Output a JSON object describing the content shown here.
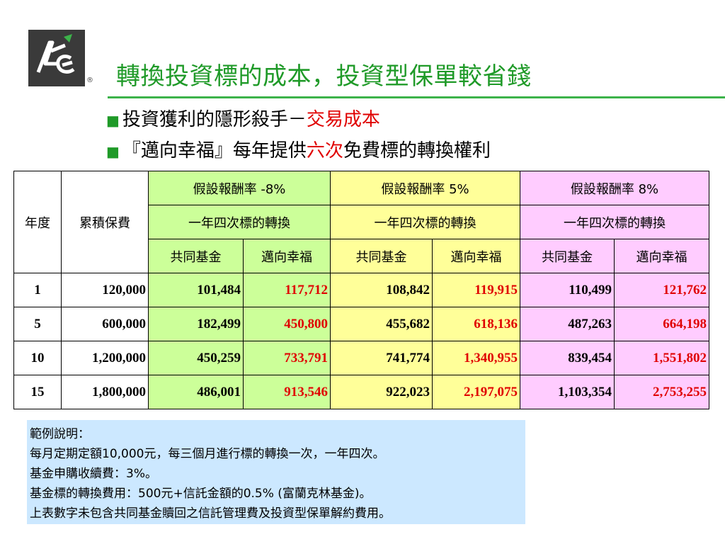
{
  "header": {
    "title": "轉換投資標的成本，投資型保單較省錢",
    "reg_mark": "®"
  },
  "bullets": [
    {
      "marker": "■",
      "prefix": "投資獲利的隱形殺手－",
      "highlight": "交易成本",
      "suffix": ""
    },
    {
      "marker": "■",
      "prefix": "『邁向幸福』每年提供",
      "highlight": "六次",
      "suffix": "免費標的轉換權利"
    }
  ],
  "table": {
    "col_year": "年度",
    "col_premium": "累積保費",
    "groups": [
      {
        "rate_label": "假設報酬率 -8%",
        "sub": "一年四次標的轉換",
        "fund": "共同基金",
        "product": "邁向幸福",
        "color": "#ccff99"
      },
      {
        "rate_label": "假設報酬率 5%",
        "sub": "一年四次標的轉換",
        "fund": "共同基金",
        "product": "邁向幸福",
        "color": "#ffff99"
      },
      {
        "rate_label": "假設報酬率 8%",
        "sub": "一年四次標的轉換",
        "fund": "共同基金",
        "product": "邁向幸福",
        "color": "#ffccff"
      }
    ],
    "rows": [
      {
        "year": "1",
        "premium": "120,000",
        "vals": [
          "101,484",
          "117,712",
          "108,842",
          "119,915",
          "110,499",
          "121,762"
        ]
      },
      {
        "year": "5",
        "premium": "600,000",
        "vals": [
          "182,499",
          "450,800",
          "455,682",
          "618,136",
          "487,263",
          "664,198"
        ]
      },
      {
        "year": "10",
        "premium": "1,200,000",
        "vals": [
          "450,259",
          "733,791",
          "741,774",
          "1,340,955",
          "839,454",
          "1,551,802"
        ]
      },
      {
        "year": "15",
        "premium": "1,800,000",
        "vals": [
          "486,001",
          "913,546",
          "922,023",
          "2,197,075",
          "1,103,354",
          "2,753,255"
        ]
      }
    ],
    "highlight_color": "#e00000"
  },
  "note": {
    "lines": [
      "範例說明：",
      "每月定期定額10,000元，每三個月進行標的轉換一次，一年四次。",
      "基金申購收續費：3%。",
      "基金標的轉換費用：500元+信託金額的0.5% (富蘭克林基金)。",
      "上表數字未包含共同基金贖回之信託管理費及投資型保單解約費用。"
    ]
  },
  "colors": {
    "title": "#1f9a28",
    "rule": "#3cb34a",
    "note_bg": "#cce8ff"
  }
}
